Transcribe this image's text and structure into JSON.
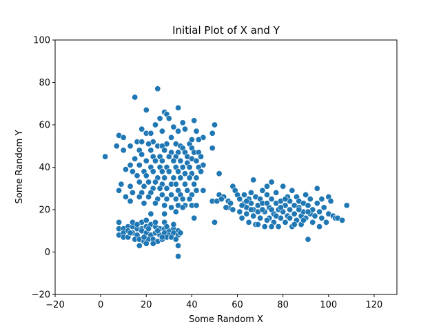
{
  "chart_data": {
    "type": "scatter",
    "title": "Initial Plot of X and Y",
    "xlabel": "Some Random X",
    "ylabel": "Some Random Y",
    "xlim": [
      -20,
      130
    ],
    "ylim": [
      -20,
      100
    ],
    "xticks": [
      -20,
      0,
      20,
      40,
      60,
      80,
      100,
      120
    ],
    "yticks": [
      -20,
      0,
      20,
      40,
      60,
      80,
      100
    ],
    "grid": false,
    "marker_color": "#1f77b4",
    "marker_edge_color": "#ffffff",
    "points": [
      [
        2,
        45
      ],
      [
        15,
        73
      ],
      [
        25,
        77
      ],
      [
        20,
        67
      ],
      [
        34,
        68
      ],
      [
        28,
        66
      ],
      [
        29,
        65
      ],
      [
        30,
        63
      ],
      [
        26,
        63
      ],
      [
        36,
        61
      ],
      [
        41,
        62
      ],
      [
        50,
        60
      ],
      [
        24,
        60
      ],
      [
        32,
        59
      ],
      [
        27,
        57
      ],
      [
        18,
        58
      ],
      [
        20,
        56
      ],
      [
        22,
        56
      ],
      [
        34,
        57
      ],
      [
        37,
        58
      ],
      [
        42,
        57
      ],
      [
        8,
        55
      ],
      [
        10,
        54
      ],
      [
        49,
        56
      ],
      [
        45,
        54
      ],
      [
        31,
        54
      ],
      [
        23,
        52
      ],
      [
        16,
        52
      ],
      [
        18,
        52
      ],
      [
        29,
        51
      ],
      [
        33,
        51
      ],
      [
        39,
        51
      ],
      [
        40,
        53
      ],
      [
        43,
        53
      ],
      [
        7,
        50
      ],
      [
        13,
        50
      ],
      [
        21,
        51
      ],
      [
        25,
        50
      ],
      [
        27,
        50
      ],
      [
        35,
        50
      ],
      [
        36,
        49
      ],
      [
        40,
        49
      ],
      [
        49,
        49
      ],
      [
        10,
        48
      ],
      [
        17,
        48
      ],
      [
        22,
        48
      ],
      [
        28,
        48
      ],
      [
        31,
        47
      ],
      [
        34,
        47
      ],
      [
        37,
        47
      ],
      [
        41,
        47
      ],
      [
        43,
        47
      ],
      [
        18,
        46
      ],
      [
        23,
        45
      ],
      [
        26,
        45
      ],
      [
        30,
        45
      ],
      [
        33,
        45
      ],
      [
        38,
        45
      ],
      [
        40,
        44
      ],
      [
        44,
        45
      ],
      [
        15,
        44
      ],
      [
        20,
        43
      ],
      [
        24,
        43
      ],
      [
        27,
        43
      ],
      [
        32,
        43
      ],
      [
        35,
        43
      ],
      [
        38,
        42
      ],
      [
        42,
        43
      ],
      [
        45,
        41
      ],
      [
        13,
        41
      ],
      [
        17,
        41
      ],
      [
        22,
        40
      ],
      [
        26,
        40
      ],
      [
        29,
        40
      ],
      [
        33,
        40
      ],
      [
        36,
        40
      ],
      [
        39,
        40
      ],
      [
        43,
        40
      ],
      [
        11,
        39
      ],
      [
        14,
        38
      ],
      [
        19,
        38
      ],
      [
        23,
        38
      ],
      [
        27,
        38
      ],
      [
        30,
        38
      ],
      [
        34,
        38
      ],
      [
        37,
        37
      ],
      [
        40,
        37
      ],
      [
        44,
        38
      ],
      [
        52,
        37
      ],
      [
        16,
        36
      ],
      [
        20,
        36
      ],
      [
        25,
        35
      ],
      [
        28,
        35
      ],
      [
        32,
        35
      ],
      [
        35,
        35
      ],
      [
        39,
        35
      ],
      [
        42,
        35
      ],
      [
        17,
        33
      ],
      [
        21,
        33
      ],
      [
        24,
        33
      ],
      [
        27,
        32
      ],
      [
        31,
        32
      ],
      [
        33,
        32
      ],
      [
        37,
        32
      ],
      [
        41,
        32
      ],
      [
        9,
        32
      ],
      [
        13,
        31
      ],
      [
        19,
        31
      ],
      [
        23,
        30
      ],
      [
        26,
        30
      ],
      [
        29,
        30
      ],
      [
        34,
        29
      ],
      [
        38,
        29
      ],
      [
        42,
        29
      ],
      [
        45,
        29
      ],
      [
        8,
        29
      ],
      [
        14,
        28
      ],
      [
        18,
        28
      ],
      [
        22,
        28
      ],
      [
        27,
        27
      ],
      [
        31,
        27
      ],
      [
        35,
        27
      ],
      [
        40,
        27
      ],
      [
        11,
        26
      ],
      [
        17,
        26
      ],
      [
        21,
        26
      ],
      [
        25,
        25
      ],
      [
        29,
        25
      ],
      [
        33,
        25
      ],
      [
        36,
        25
      ],
      [
        39,
        25
      ],
      [
        13,
        24
      ],
      [
        19,
        23
      ],
      [
        24,
        23
      ],
      [
        28,
        22
      ],
      [
        34,
        22
      ],
      [
        37,
        22
      ],
      [
        40,
        22
      ],
      [
        42,
        22
      ],
      [
        49,
        24
      ],
      [
        51,
        24
      ],
      [
        41,
        16
      ],
      [
        50,
        14
      ],
      [
        22,
        18
      ],
      [
        28,
        18
      ],
      [
        33,
        19
      ],
      [
        36,
        21
      ],
      [
        31,
        21
      ],
      [
        8,
        14
      ],
      [
        8,
        11
      ],
      [
        10,
        11
      ],
      [
        12,
        12
      ],
      [
        14,
        12
      ],
      [
        16,
        11
      ],
      [
        18,
        11
      ],
      [
        20,
        12
      ],
      [
        22,
        13
      ],
      [
        24,
        12
      ],
      [
        26,
        11
      ],
      [
        28,
        11
      ],
      [
        30,
        10
      ],
      [
        32,
        11
      ],
      [
        34,
        10
      ],
      [
        8,
        8
      ],
      [
        10,
        9
      ],
      [
        12,
        10
      ],
      [
        14,
        9
      ],
      [
        16,
        8
      ],
      [
        18,
        10
      ],
      [
        20,
        9
      ],
      [
        22,
        8
      ],
      [
        24,
        9
      ],
      [
        26,
        8
      ],
      [
        28,
        9
      ],
      [
        30,
        8
      ],
      [
        32,
        9
      ],
      [
        34,
        8
      ],
      [
        10,
        7
      ],
      [
        12,
        7
      ],
      [
        15,
        6
      ],
      [
        17,
        6
      ],
      [
        19,
        5
      ],
      [
        21,
        6
      ],
      [
        23,
        6
      ],
      [
        25,
        5
      ],
      [
        27,
        6
      ],
      [
        29,
        7
      ],
      [
        31,
        7
      ],
      [
        33,
        6
      ],
      [
        14,
        14
      ],
      [
        18,
        14
      ],
      [
        20,
        15
      ],
      [
        24,
        14
      ],
      [
        28,
        14
      ],
      [
        32,
        13
      ],
      [
        13,
        9
      ],
      [
        19,
        7
      ],
      [
        23,
        4
      ],
      [
        27,
        7
      ],
      [
        17,
        3
      ],
      [
        20,
        4
      ],
      [
        34,
        3
      ],
      [
        34,
        -2
      ],
      [
        35,
        9
      ],
      [
        16,
        13
      ],
      [
        21,
        11
      ],
      [
        25,
        10
      ],
      [
        29,
        12
      ],
      [
        52,
        27
      ],
      [
        54,
        26
      ],
      [
        56,
        24
      ],
      [
        56,
        21
      ],
      [
        58,
        31
      ],
      [
        58,
        20
      ],
      [
        59,
        29
      ],
      [
        60,
        27
      ],
      [
        61,
        25
      ],
      [
        61,
        19
      ],
      [
        62,
        16
      ],
      [
        63,
        23
      ],
      [
        63,
        27
      ],
      [
        64,
        18
      ],
      [
        64,
        21
      ],
      [
        65,
        14
      ],
      [
        65,
        25
      ],
      [
        66,
        28
      ],
      [
        66,
        23
      ],
      [
        67,
        20
      ],
      [
        67,
        34
      ],
      [
        67,
        17
      ],
      [
        68,
        13
      ],
      [
        68,
        26
      ],
      [
        69,
        22
      ],
      [
        69,
        19
      ],
      [
        70,
        16
      ],
      [
        70,
        25
      ],
      [
        71,
        29
      ],
      [
        71,
        23
      ],
      [
        72,
        12
      ],
      [
        72,
        19
      ],
      [
        73,
        27
      ],
      [
        73,
        31
      ],
      [
        74,
        21
      ],
      [
        74,
        16
      ],
      [
        75,
        33
      ],
      [
        75,
        25
      ],
      [
        76,
        18
      ],
      [
        76,
        14
      ],
      [
        77,
        23
      ],
      [
        77,
        28
      ],
      [
        78,
        20
      ],
      [
        78,
        12
      ],
      [
        79,
        16
      ],
      [
        79,
        24
      ],
      [
        80,
        31
      ],
      [
        80,
        19
      ],
      [
        81,
        22
      ],
      [
        81,
        14
      ],
      [
        82,
        26
      ],
      [
        82,
        17
      ],
      [
        83,
        20
      ],
      [
        83,
        24
      ],
      [
        84,
        29
      ],
      [
        84,
        12
      ],
      [
        85,
        18
      ],
      [
        85,
        22
      ],
      [
        86,
        26
      ],
      [
        86,
        15
      ],
      [
        87,
        21
      ],
      [
        87,
        24
      ],
      [
        88,
        17
      ],
      [
        88,
        13
      ],
      [
        89,
        23
      ],
      [
        89,
        19
      ],
      [
        90,
        27
      ],
      [
        90,
        16
      ],
      [
        91,
        22
      ],
      [
        91,
        6
      ],
      [
        92,
        25
      ],
      [
        92,
        18
      ],
      [
        93,
        14
      ],
      [
        93,
        20
      ],
      [
        94,
        17
      ],
      [
        95,
        30
      ],
      [
        95,
        23
      ],
      [
        96,
        12
      ],
      [
        96,
        19
      ],
      [
        97,
        25
      ],
      [
        97,
        16
      ],
      [
        98,
        21
      ],
      [
        99,
        14
      ],
      [
        100,
        26
      ],
      [
        100,
        18
      ],
      [
        101,
        24
      ],
      [
        102,
        17
      ],
      [
        103,
        16
      ],
      [
        104,
        16
      ],
      [
        106,
        15
      ],
      [
        108,
        22
      ],
      [
        73,
        23
      ],
      [
        75,
        20
      ],
      [
        77,
        17
      ],
      [
        79,
        21
      ],
      [
        81,
        25
      ],
      [
        83,
        16
      ],
      [
        85,
        13
      ],
      [
        87,
        20
      ],
      [
        89,
        15
      ],
      [
        91,
        19
      ],
      [
        69,
        13
      ],
      [
        71,
        20
      ],
      [
        73,
        15
      ],
      [
        75,
        12
      ],
      [
        66,
        20
      ],
      [
        64,
        24
      ],
      [
        62,
        22
      ],
      [
        57,
        23
      ],
      [
        55,
        21
      ],
      [
        53,
        25
      ]
    ]
  }
}
